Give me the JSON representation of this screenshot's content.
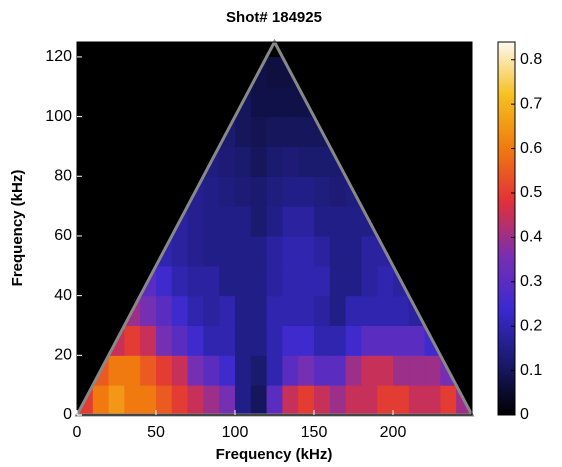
{
  "chart_data": {
    "type": "heatmap",
    "title": "Shot# 184925",
    "x_label": "Frequency (kHz)",
    "y_label": "Frequency (kHz)",
    "x": [
      5,
      15,
      25,
      35,
      45,
      55,
      65,
      75,
      85,
      95,
      105,
      115,
      125,
      135,
      145,
      155,
      165,
      175,
      185,
      195,
      205,
      215,
      225,
      235,
      245
    ],
    "y": [
      5,
      15,
      25,
      35,
      45,
      55,
      65,
      75,
      85,
      95,
      105,
      115
    ],
    "z": [
      [
        0.5,
        0.6,
        0.65,
        0.6,
        0.6,
        0.55,
        0.5,
        0.45,
        0.4,
        0.35,
        0.15,
        0.1,
        0.3,
        0.45,
        0.5,
        0.45,
        0.4,
        0.45,
        0.45,
        0.5,
        0.5,
        0.45,
        0.45,
        0.5,
        0.4
      ],
      [
        null,
        0.55,
        0.6,
        0.6,
        0.55,
        0.5,
        0.45,
        0.35,
        0.3,
        0.25,
        0.15,
        0.12,
        0.2,
        0.3,
        0.35,
        0.3,
        0.3,
        0.4,
        0.45,
        0.45,
        0.4,
        0.4,
        0.4,
        0.35,
        null
      ],
      [
        null,
        null,
        0.45,
        0.5,
        0.45,
        0.35,
        0.3,
        0.25,
        0.2,
        0.2,
        0.15,
        0.15,
        0.2,
        0.25,
        0.25,
        0.2,
        0.2,
        0.25,
        0.3,
        0.3,
        0.3,
        0.3,
        0.25,
        null,
        null
      ],
      [
        null,
        null,
        null,
        0.4,
        0.35,
        0.3,
        0.25,
        0.2,
        0.18,
        0.2,
        0.15,
        0.15,
        0.2,
        0.2,
        0.2,
        0.18,
        0.15,
        0.2,
        0.2,
        0.2,
        0.2,
        0.18,
        null,
        null,
        null
      ],
      [
        null,
        null,
        null,
        null,
        0.3,
        0.25,
        0.2,
        0.18,
        0.18,
        0.15,
        0.15,
        0.15,
        0.18,
        0.2,
        0.2,
        0.2,
        0.15,
        0.15,
        0.18,
        0.2,
        0.18,
        null,
        null,
        null,
        null
      ],
      [
        null,
        null,
        null,
        null,
        null,
        0.2,
        0.18,
        0.16,
        0.15,
        0.15,
        0.15,
        0.15,
        0.18,
        0.2,
        0.2,
        0.18,
        0.15,
        0.15,
        0.18,
        0.18,
        null,
        null,
        null,
        null,
        null
      ],
      [
        null,
        null,
        null,
        null,
        null,
        null,
        0.18,
        0.16,
        0.15,
        0.15,
        0.15,
        0.12,
        0.15,
        0.18,
        0.18,
        0.15,
        0.15,
        0.15,
        0.15,
        null,
        null,
        null,
        null,
        null,
        null
      ],
      [
        null,
        null,
        null,
        null,
        null,
        null,
        null,
        0.16,
        0.15,
        0.14,
        0.13,
        0.12,
        0.14,
        0.15,
        0.15,
        0.14,
        0.13,
        0.14,
        null,
        null,
        null,
        null,
        null,
        null,
        null
      ],
      [
        null,
        null,
        null,
        null,
        null,
        null,
        null,
        null,
        0.14,
        0.13,
        0.12,
        0.1,
        0.12,
        0.13,
        0.12,
        0.12,
        0.12,
        null,
        null,
        null,
        null,
        null,
        null,
        null,
        null
      ],
      [
        null,
        null,
        null,
        null,
        null,
        null,
        null,
        null,
        null,
        0.12,
        0.1,
        0.09,
        0.1,
        0.1,
        0.1,
        0.1,
        null,
        null,
        null,
        null,
        null,
        null,
        null,
        null,
        null
      ],
      [
        null,
        null,
        null,
        null,
        null,
        null,
        null,
        null,
        null,
        null,
        0.1,
        0.08,
        0.08,
        0.08,
        0.08,
        null,
        null,
        null,
        null,
        null,
        null,
        null,
        null,
        null,
        null
      ],
      [
        null,
        null,
        null,
        null,
        null,
        null,
        null,
        null,
        null,
        null,
        null,
        0.08,
        0.07,
        0.07,
        null,
        null,
        null,
        null,
        null,
        null,
        null,
        null,
        null,
        null,
        null
      ]
    ],
    "xlim": [
      0,
      250
    ],
    "ylim": [
      0,
      125
    ],
    "xticks": [
      0,
      50,
      100,
      150,
      200
    ],
    "yticks": [
      0,
      20,
      40,
      60,
      80,
      100,
      120
    ],
    "clim": [
      0,
      0.84
    ],
    "cticks": [
      0,
      0.1,
      0.2,
      0.3,
      0.4,
      0.5,
      0.6,
      0.7,
      0.8
    ],
    "colormap": [
      "#000000",
      "#1a1a6e",
      "#3a2ad0",
      "#7a2fb0",
      "#e0303a",
      "#f07a10",
      "#f5c020",
      "#fff8f0"
    ]
  }
}
